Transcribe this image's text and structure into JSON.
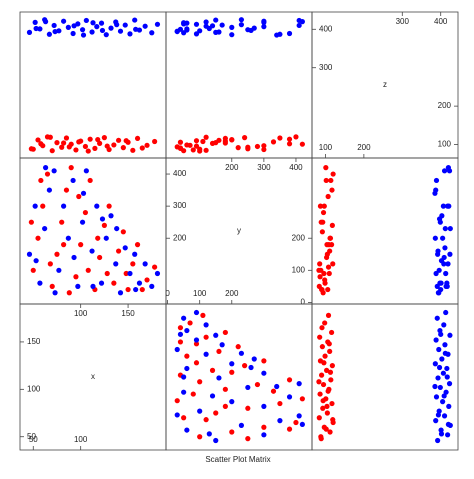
{
  "chart_data": {
    "type": "splom",
    "title": "Scatter Plot Matrix",
    "variables": [
      {
        "label": "x",
        "lim": [
          36,
          190
        ],
        "ticks_left": [
          50,
          100,
          150
        ],
        "ticks_right": [],
        "ticks_top": [
          100,
          150
        ],
        "ticks_bottom": [
          50,
          100
        ]
      },
      {
        "label": "y",
        "lim": [
          -5,
          450
        ],
        "ticks_left": [
          200,
          300,
          400
        ],
        "ticks_right": [
          0,
          100,
          200
        ],
        "ticks_top": [
          200,
          300,
          400
        ],
        "ticks_bottom": [
          0,
          100,
          200
        ]
      },
      {
        "label": "z",
        "lim": [
          65,
          445
        ],
        "ticks_left": [
          300,
          400
        ],
        "ticks_right": [
          100,
          200
        ],
        "ticks_top": [
          300,
          400
        ],
        "ticks_bottom": [
          100,
          200
        ]
      }
    ],
    "series": [
      {
        "color": "#ff0000",
        "columns": [
          [
            50,
            55,
            60,
            65,
            70,
            75,
            80,
            85,
            90,
            95,
            100,
            105,
            110,
            115,
            120,
            125,
            130,
            135,
            140,
            145,
            150,
            155,
            160,
            170,
            178,
            48,
            58,
            68,
            88,
            98,
            108,
            118,
            128,
            148,
            165,
            82
          ],
          [
            100,
            200,
            300,
            400,
            50,
            150,
            250,
            350,
            420,
            80,
            180,
            280,
            380,
            40,
            140,
            240,
            300,
            60,
            160,
            220,
            40,
            120,
            180,
            70,
            110,
            250,
            380,
            120,
            30,
            330,
            100,
            200,
            90,
            90,
            40,
            180
          ],
          [
            88,
            112,
            97,
            120,
            84,
            105,
            93,
            117,
            101,
            86,
            109,
            95,
            114,
            90,
            103,
            118,
            87,
            99,
            111,
            92,
            106,
            85,
            116,
            98,
            108,
            89,
            102,
            119,
            94,
            107,
            83,
            113,
            96,
            110,
            91,
            104
          ]
        ]
      },
      {
        "color": "#0000ff",
        "columns": [
          [
            46,
            52,
            57,
            62,
            67,
            72,
            77,
            82,
            87,
            92,
            97,
            102,
            106,
            112,
            117,
            122,
            127,
            132,
            137,
            142,
            147,
            152,
            157,
            162,
            168,
            175,
            181,
            53,
            63,
            73,
            93,
            103,
            113,
            123,
            138,
            158
          ],
          [
            150,
            300,
            60,
            230,
            350,
            410,
            100,
            300,
            200,
            380,
            50,
            250,
            410,
            160,
            300,
            60,
            200,
            270,
            120,
            30,
            170,
            90,
            150,
            60,
            120,
            50,
            90,
            130,
            420,
            30,
            140,
            340,
            50,
            260,
            230,
            40
          ],
          [
            392,
            418,
            401,
            425,
            387,
            410,
            396,
            421,
            405,
            389,
            414,
            399,
            423,
            393,
            407,
            416,
            386,
            403,
            419,
            395,
            411,
            388,
            424,
            398,
            408,
            391,
            413,
            402,
            420,
            394,
            409,
            385,
            417,
            397,
            412,
            400
          ]
        ]
      }
    ]
  }
}
